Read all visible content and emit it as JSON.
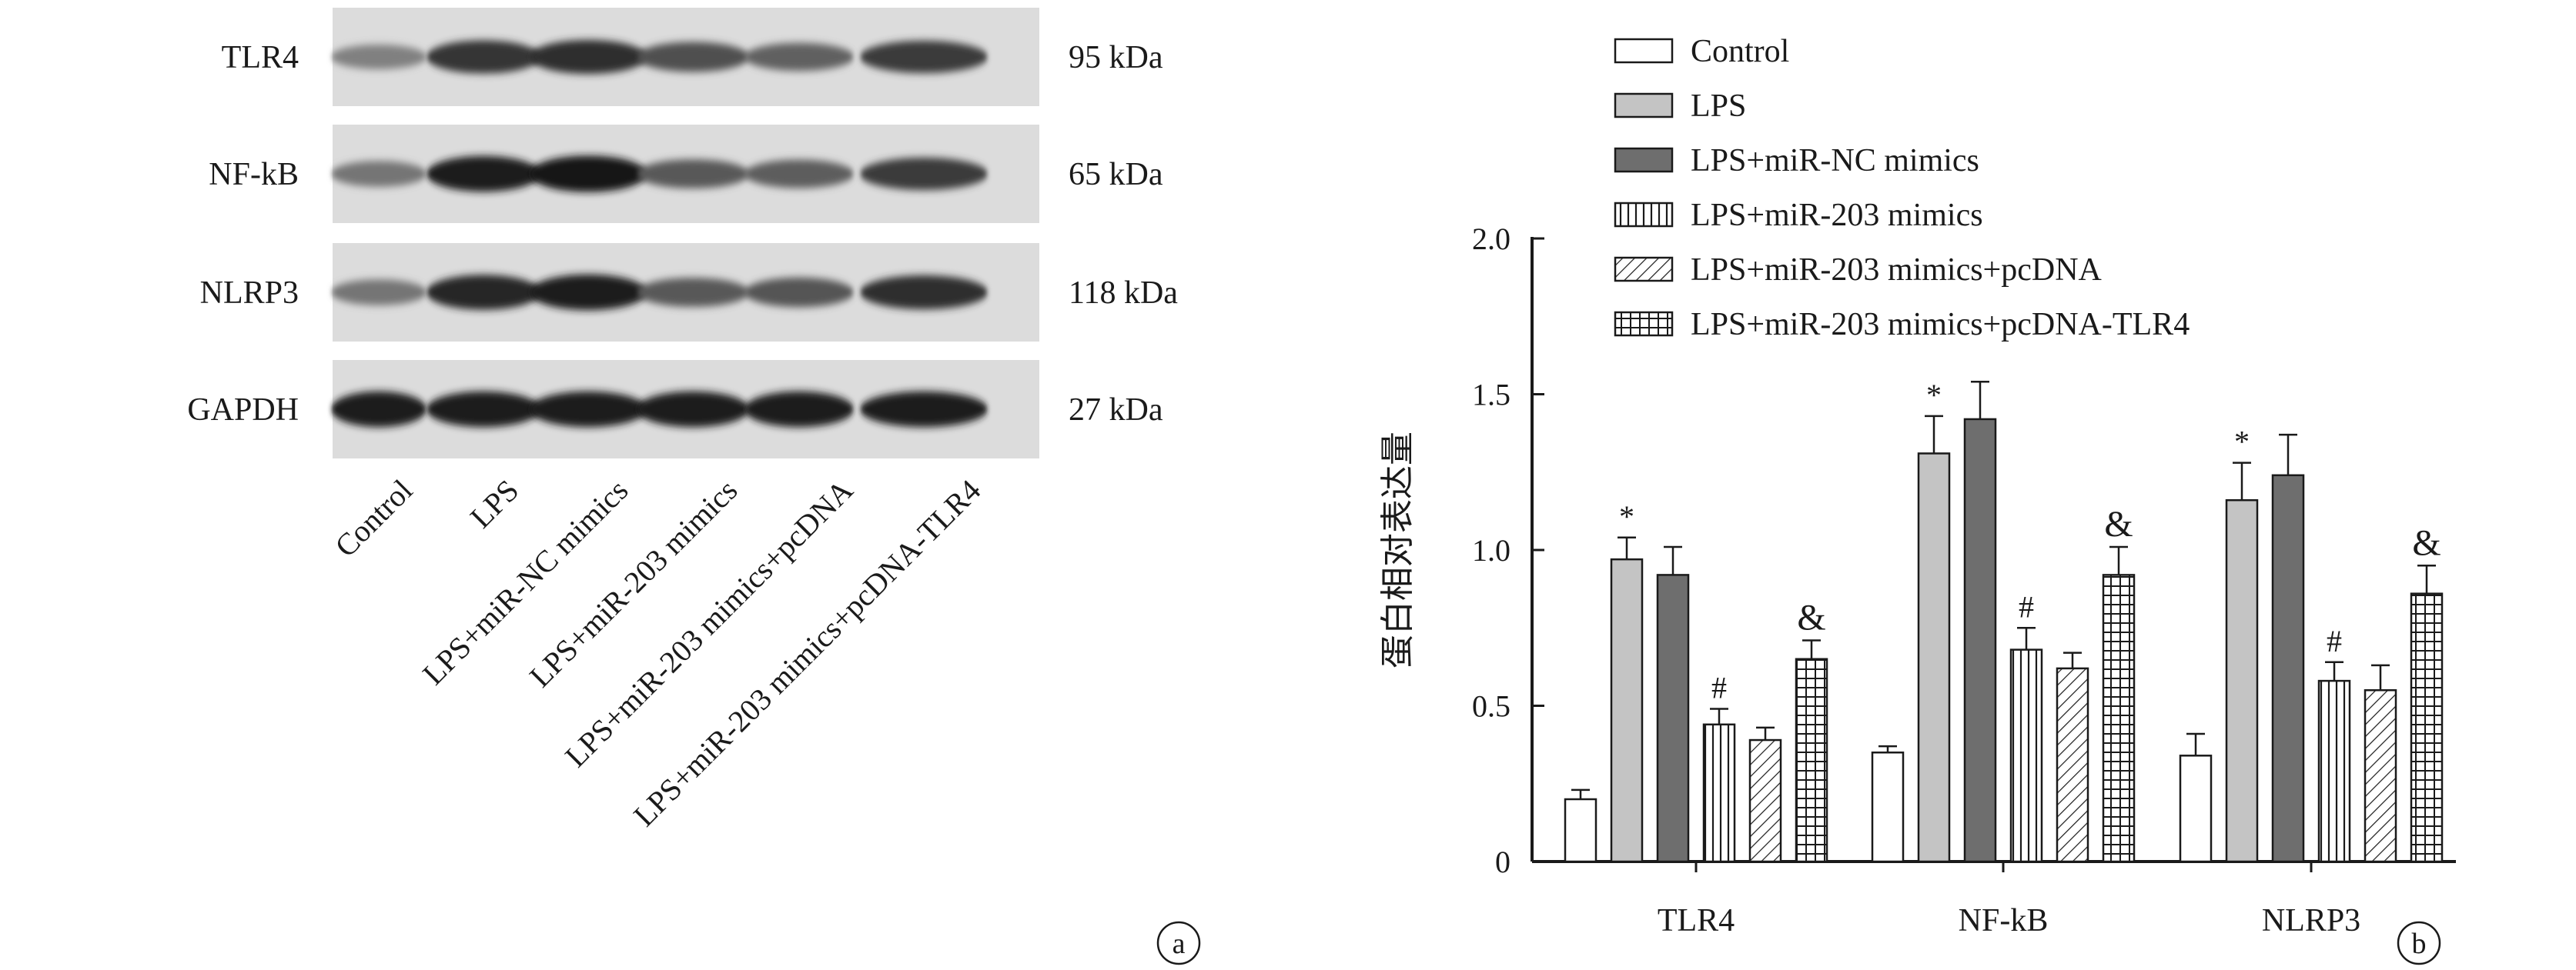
{
  "panel_a": {
    "proteins": [
      {
        "name": "TLR4",
        "size": "95 kDa",
        "intensity": [
          0.5,
          0.85,
          0.88,
          0.72,
          0.64,
          0.82
        ]
      },
      {
        "name": "NF-kB",
        "size": "65 kDa",
        "intensity": [
          0.55,
          0.95,
          0.98,
          0.68,
          0.66,
          0.82
        ]
      },
      {
        "name": "NLRP3",
        "size": "118 kDa",
        "intensity": [
          0.55,
          0.92,
          0.95,
          0.68,
          0.7,
          0.88
        ]
      },
      {
        "name": "GAPDH",
        "size": "27 kDa",
        "intensity": [
          0.95,
          0.95,
          0.95,
          0.95,
          0.95,
          0.95
        ]
      }
    ],
    "lanes": [
      "Control",
      "LPS",
      "LPS+miR-NC mimics",
      "LPS+miR-203 mimics",
      "LPS+miR-203 mimics+pcDNA",
      "LPS+miR-203 mimics+pcDNA-TLR4"
    ],
    "panel_label": "a"
  },
  "chart_data": {
    "type": "bar",
    "panel_label": "b",
    "title": "",
    "xlabel": "",
    "ylabel": "蛋白相对表达量",
    "categories": [
      "TLR4",
      "NF-kB",
      "NLRP3"
    ],
    "ylim": [
      0,
      2.0
    ],
    "yticks": [
      "0",
      "0.5",
      "1.0",
      "1.5",
      "2.0"
    ],
    "legend_position": "top",
    "series": [
      {
        "name": "Control",
        "pattern": "white",
        "values": [
          0.2,
          0.35,
          0.34
        ],
        "errors": [
          0.03,
          0.02,
          0.07
        ],
        "marks": [
          "",
          "",
          ""
        ]
      },
      {
        "name": "LPS",
        "pattern": "light-gray",
        "values": [
          0.97,
          1.31,
          1.16
        ],
        "errors": [
          0.07,
          0.12,
          0.12
        ],
        "marks": [
          "*",
          "*",
          "*"
        ]
      },
      {
        "name": "LPS+miR-NC mimics",
        "pattern": "dark-gray",
        "values": [
          0.92,
          1.42,
          1.24
        ],
        "errors": [
          0.09,
          0.12,
          0.13
        ],
        "marks": [
          "",
          "",
          ""
        ]
      },
      {
        "name": "LPS+miR-203 mimics",
        "pattern": "vertical-stripes",
        "values": [
          0.44,
          0.68,
          0.58
        ],
        "errors": [
          0.05,
          0.07,
          0.06
        ],
        "marks": [
          "#",
          "#",
          "#"
        ]
      },
      {
        "name": "LPS+miR-203 mimics+pcDNA",
        "pattern": "diagonal-hatch",
        "values": [
          0.39,
          0.62,
          0.55
        ],
        "errors": [
          0.04,
          0.05,
          0.08
        ],
        "marks": [
          "",
          "",
          ""
        ]
      },
      {
        "name": "LPS+miR-203 mimics+pcDNA-TLR4",
        "pattern": "grid",
        "values": [
          0.65,
          0.92,
          0.86
        ],
        "errors": [
          0.06,
          0.09,
          0.09
        ],
        "marks": [
          "&",
          "&",
          "&"
        ]
      }
    ],
    "colors": {
      "light-gray": "#c4c4c4",
      "dark-gray": "#6e6e6e",
      "axis": "#1a1a1a"
    }
  }
}
